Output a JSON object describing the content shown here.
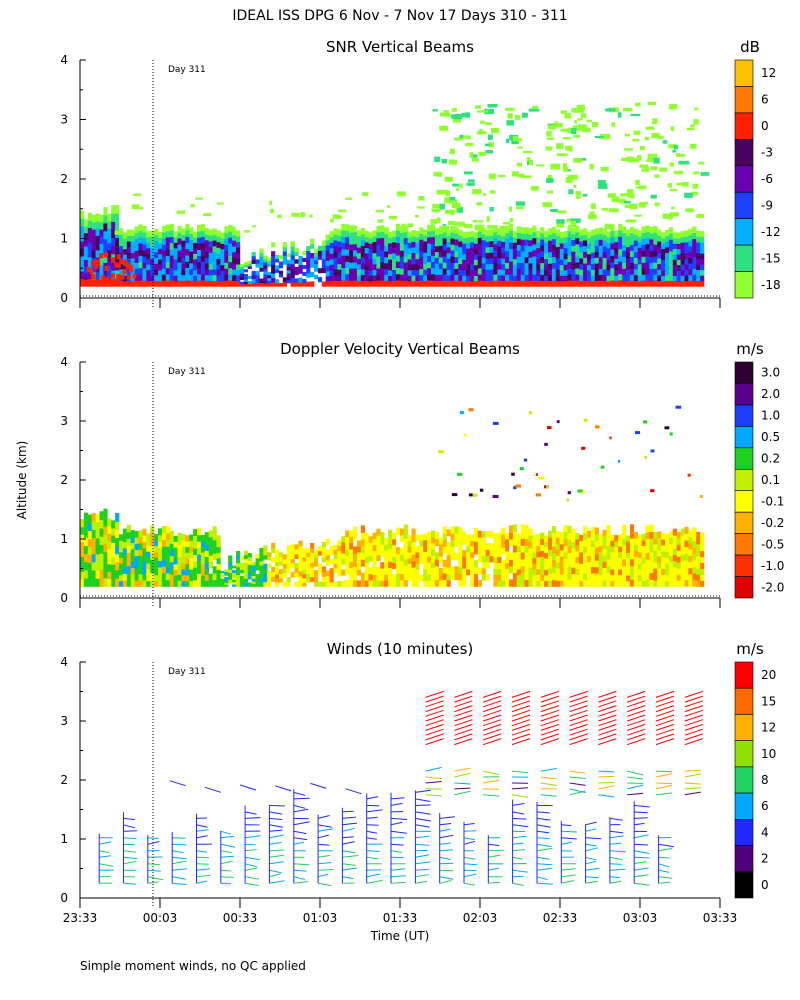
{
  "header": {
    "title": "IDEAL ISS DPG   6 Nov -  7 Nov 17 Days 310 - 311"
  },
  "footer": {
    "note": "Simple moment winds, no QC applied"
  },
  "chart_data": [
    {
      "type": "heatmap",
      "id": "snr",
      "title": "SNR Vertical Beams",
      "ylabel": "",
      "ylim": [
        0,
        4
      ],
      "yticks": [
        "0",
        "1",
        "2",
        "3",
        "4"
      ],
      "day_marker": "Day 311",
      "colorbar_units": "dB",
      "colorbar": {
        "labels": [
          "12",
          "6",
          "0",
          "-3",
          "-6",
          "-9",
          "-12",
          "-15",
          "-18"
        ],
        "colors": [
          "#FFC000",
          "#FF7A00",
          "#FF2000",
          "#4A0060",
          "#6A00B0",
          "#1E40FF",
          "#00B0FF",
          "#30E080",
          "#90FF30"
        ]
      }
    },
    {
      "type": "heatmap",
      "id": "doppler",
      "title": "Doppler Velocity Vertical Beams",
      "ylabel": "Altitude (km)",
      "ylim": [
        0,
        4
      ],
      "yticks": [
        "0",
        "1",
        "2",
        "3",
        "4"
      ],
      "day_marker": "Day 311",
      "colorbar_units": "m/s",
      "colorbar": {
        "labels": [
          "3.0",
          "2.0",
          "1.0",
          "0.5",
          "0.2",
          "0.1",
          "-0.1",
          "-0.2",
          "-0.5",
          "-1.0",
          "-2.0"
        ],
        "colors": [
          "#300030",
          "#5A0090",
          "#1E3CFF",
          "#00A8FF",
          "#20D020",
          "#C0F000",
          "#FFFF00",
          "#FFB000",
          "#FF7A00",
          "#FF3000",
          "#E00000"
        ]
      }
    },
    {
      "type": "scatter",
      "id": "winds",
      "title": "Winds (10 minutes)",
      "ylabel": "",
      "ylim": [
        0,
        4
      ],
      "yticks": [
        "0",
        "1",
        "2",
        "3",
        "4"
      ],
      "day_marker": "Day 311",
      "xlabel": "Time (UT)",
      "xticks": [
        "23:33",
        "00:03",
        "00:33",
        "01:03",
        "01:33",
        "02:03",
        "02:33",
        "03:03",
        "03:33"
      ],
      "colorbar_units": "m/s",
      "colorbar": {
        "labels": [
          "20",
          "15",
          "12",
          "10",
          "8",
          "6",
          "4",
          "2",
          "0"
        ],
        "colors": [
          "#FF0000",
          "#FF6A00",
          "#FFB000",
          "#90E000",
          "#20D060",
          "#00A8FF",
          "#1E28FF",
          "#50007A",
          "#000000"
        ]
      }
    }
  ]
}
